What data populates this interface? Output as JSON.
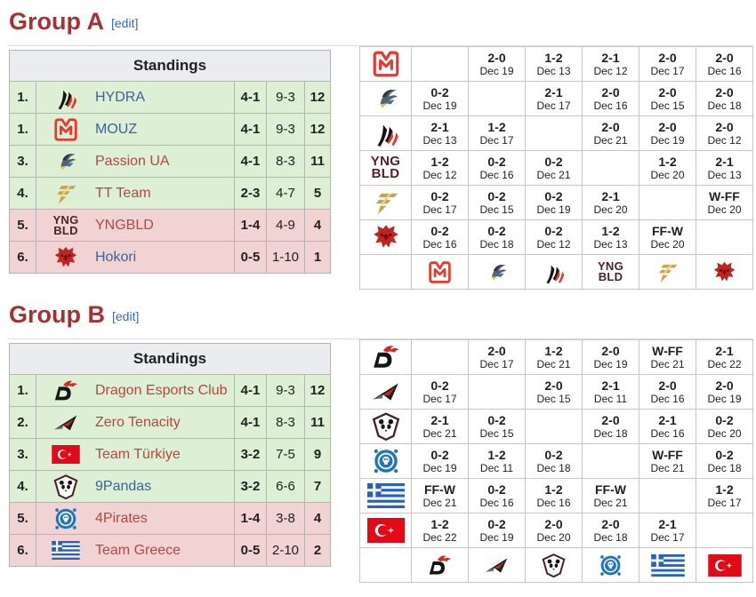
{
  "colors": {
    "heading": "#a53130",
    "edit_link": "#3a66c0",
    "link_blue": "#3a62a0",
    "link_red": "#b4473f",
    "standings_advance_bg": "#ddf0d5",
    "standings_eliminated_bg": "#f2d3d3",
    "win_bg": "#def2d8",
    "loss_bg": "#f4d6d6",
    "diagonal_bg": "#e3e3eb",
    "header_bg": "#eaecf0"
  },
  "icon_text": {
    "yngbld-logo": [
      "YNG",
      "BLD"
    ]
  },
  "groups": [
    {
      "title": "Group A",
      "edit_label": "[edit]",
      "standings": {
        "title": "Standings",
        "rows": [
          {
            "rank": "1.",
            "icon": "hydra-logo",
            "team": "HYDRA",
            "link": "blue",
            "match_record": "4-1",
            "game_record": "9-3",
            "points": "12",
            "zone": "advance"
          },
          {
            "rank": "1.",
            "icon": "mouz-logo",
            "team": "MOUZ",
            "link": "blue",
            "match_record": "4-1",
            "game_record": "9-3",
            "points": "12",
            "zone": "advance"
          },
          {
            "rank": "3.",
            "icon": "passion-ua-logo",
            "team": "Passion UA",
            "link": "red",
            "match_record": "4-1",
            "game_record": "8-3",
            "points": "11",
            "zone": "advance"
          },
          {
            "rank": "4.",
            "icon": "tt-team-logo",
            "team": "TT Team",
            "link": "red",
            "match_record": "2-3",
            "game_record": "4-7",
            "points": "5",
            "zone": "advance"
          },
          {
            "rank": "5.",
            "icon": "yngbld-logo",
            "team": "YNGBLD",
            "link": "red",
            "match_record": "1-4",
            "game_record": "4-9",
            "points": "4",
            "zone": "eliminated"
          },
          {
            "rank": "6.",
            "icon": "hokori-logo",
            "team": "Hokori",
            "link": "blue",
            "match_record": "0-5",
            "game_record": "1-10",
            "points": "1",
            "zone": "eliminated"
          }
        ]
      },
      "crosstable": {
        "columns": [
          {
            "team": "MOUZ",
            "icon": "mouz-logo"
          },
          {
            "team": "Passion UA",
            "icon": "passion-ua-logo"
          },
          {
            "team": "HYDRA",
            "icon": "hydra-logo"
          },
          {
            "team": "YNGBLD",
            "icon": "yngbld-logo"
          },
          {
            "team": "TT Team",
            "icon": "tt-team-logo"
          },
          {
            "team": "Hokori",
            "icon": "hokori-logo"
          }
        ],
        "rows": [
          {
            "team": "MOUZ",
            "icon": "mouz-logo",
            "results": [
              null,
              {
                "score": "2-0",
                "date": "Dec 19",
                "result": "win"
              },
              {
                "score": "1-2",
                "date": "Dec 13",
                "result": "loss"
              },
              {
                "score": "2-1",
                "date": "Dec 12",
                "result": "win"
              },
              {
                "score": "2-0",
                "date": "Dec 17",
                "result": "win"
              },
              {
                "score": "2-0",
                "date": "Dec 16",
                "result": "win"
              }
            ]
          },
          {
            "team": "Passion UA",
            "icon": "passion-ua-logo",
            "results": [
              {
                "score": "0-2",
                "date": "Dec 19",
                "result": "loss"
              },
              null,
              {
                "score": "2-1",
                "date": "Dec 17",
                "result": "win"
              },
              {
                "score": "2-0",
                "date": "Dec 16",
                "result": "win"
              },
              {
                "score": "2-0",
                "date": "Dec 15",
                "result": "win"
              },
              {
                "score": "2-0",
                "date": "Dec 18",
                "result": "win"
              }
            ]
          },
          {
            "team": "HYDRA",
            "icon": "hydra-logo",
            "results": [
              {
                "score": "2-1",
                "date": "Dec 13",
                "result": "win"
              },
              {
                "score": "1-2",
                "date": "Dec 17",
                "result": "loss"
              },
              null,
              {
                "score": "2-0",
                "date": "Dec 21",
                "result": "win"
              },
              {
                "score": "2-0",
                "date": "Dec 19",
                "result": "win"
              },
              {
                "score": "2-0",
                "date": "Dec 12",
                "result": "win"
              }
            ]
          },
          {
            "team": "YNGBLD",
            "icon": "yngbld-logo",
            "results": [
              {
                "score": "1-2",
                "date": "Dec 12",
                "result": "loss"
              },
              {
                "score": "0-2",
                "date": "Dec 16",
                "result": "loss"
              },
              {
                "score": "0-2",
                "date": "Dec 21",
                "result": "loss"
              },
              null,
              {
                "score": "1-2",
                "date": "Dec 20",
                "result": "loss"
              },
              {
                "score": "2-1",
                "date": "Dec 13",
                "result": "win"
              }
            ]
          },
          {
            "team": "TT Team",
            "icon": "tt-team-logo",
            "results": [
              {
                "score": "0-2",
                "date": "Dec 17",
                "result": "loss"
              },
              {
                "score": "0-2",
                "date": "Dec 15",
                "result": "loss"
              },
              {
                "score": "0-2",
                "date": "Dec 19",
                "result": "loss"
              },
              {
                "score": "2-1",
                "date": "Dec 20",
                "result": "win"
              },
              null,
              {
                "score": "W-FF",
                "date": "Dec 20",
                "result": "win"
              }
            ]
          },
          {
            "team": "Hokori",
            "icon": "hokori-logo",
            "results": [
              {
                "score": "0-2",
                "date": "Dec 16",
                "result": "loss"
              },
              {
                "score": "0-2",
                "date": "Dec 18",
                "result": "loss"
              },
              {
                "score": "0-2",
                "date": "Dec 12",
                "result": "loss"
              },
              {
                "score": "1-2",
                "date": "Dec 13",
                "result": "loss"
              },
              {
                "score": "FF-W",
                "date": "Dec 20",
                "result": "loss"
              },
              null
            ]
          }
        ]
      }
    },
    {
      "title": "Group B",
      "edit_label": "[edit]",
      "standings": {
        "title": "Standings",
        "rows": [
          {
            "rank": "1.",
            "icon": "dragon-esports-logo",
            "team": "Dragon Esports Club",
            "link": "red",
            "match_record": "4-1",
            "game_record": "9-3",
            "points": "12",
            "zone": "advance"
          },
          {
            "rank": "2.",
            "icon": "zero-tenacity-logo",
            "team": "Zero Tenacity",
            "link": "red",
            "match_record": "4-1",
            "game_record": "8-3",
            "points": "11",
            "zone": "advance"
          },
          {
            "rank": "3.",
            "icon": "turkiye-flag",
            "team": "Team Türkiye",
            "link": "red",
            "match_record": "3-2",
            "game_record": "7-5",
            "points": "9",
            "zone": "advance"
          },
          {
            "rank": "4.",
            "icon": "9pandas-logo",
            "team": "9Pandas",
            "link": "blue",
            "match_record": "3-2",
            "game_record": "6-6",
            "points": "7",
            "zone": "advance"
          },
          {
            "rank": "5.",
            "icon": "4pirates-logo",
            "team": "4Pirates",
            "link": "red",
            "match_record": "1-4",
            "game_record": "3-8",
            "points": "4",
            "zone": "eliminated"
          },
          {
            "rank": "6.",
            "icon": "greece-flag",
            "team": "Team Greece",
            "link": "red",
            "match_record": "0-5",
            "game_record": "2-10",
            "points": "2",
            "zone": "eliminated"
          }
        ]
      },
      "crosstable": {
        "columns": [
          {
            "team": "Dragon Esports Club",
            "icon": "dragon-esports-logo"
          },
          {
            "team": "Zero Tenacity",
            "icon": "zero-tenacity-logo"
          },
          {
            "team": "9Pandas",
            "icon": "9pandas-logo"
          },
          {
            "team": "4Pirates",
            "icon": "4pirates-logo"
          },
          {
            "team": "Team Greece",
            "icon": "greece-flag"
          },
          {
            "team": "Team Türkiye",
            "icon": "turkiye-flag"
          }
        ],
        "rows": [
          {
            "team": "Dragon Esports Club",
            "icon": "dragon-esports-logo",
            "results": [
              null,
              {
                "score": "2-0",
                "date": "Dec 17",
                "result": "win"
              },
              {
                "score": "1-2",
                "date": "Dec 21",
                "result": "loss"
              },
              {
                "score": "2-0",
                "date": "Dec 19",
                "result": "win"
              },
              {
                "score": "W-FF",
                "date": "Dec 21",
                "result": "win"
              },
              {
                "score": "2-1",
                "date": "Dec 22",
                "result": "win"
              }
            ]
          },
          {
            "team": "Zero Tenacity",
            "icon": "zero-tenacity-logo",
            "results": [
              {
                "score": "0-2",
                "date": "Dec 17",
                "result": "loss"
              },
              null,
              {
                "score": "2-0",
                "date": "Dec 15",
                "result": "win"
              },
              {
                "score": "2-1",
                "date": "Dec 11",
                "result": "win"
              },
              {
                "score": "2-0",
                "date": "Dec 16",
                "result": "win"
              },
              {
                "score": "2-0",
                "date": "Dec 19",
                "result": "win"
              }
            ]
          },
          {
            "team": "9Pandas",
            "icon": "9pandas-logo",
            "results": [
              {
                "score": "2-1",
                "date": "Dec 21",
                "result": "win"
              },
              {
                "score": "0-2",
                "date": "Dec 15",
                "result": "loss"
              },
              null,
              {
                "score": "2-0",
                "date": "Dec 18",
                "result": "win"
              },
              {
                "score": "2-1",
                "date": "Dec 16",
                "result": "win"
              },
              {
                "score": "0-2",
                "date": "Dec 20",
                "result": "loss"
              }
            ]
          },
          {
            "team": "4Pirates",
            "icon": "4pirates-logo",
            "results": [
              {
                "score": "0-2",
                "date": "Dec 19",
                "result": "loss"
              },
              {
                "score": "1-2",
                "date": "Dec 11",
                "result": "loss"
              },
              {
                "score": "0-2",
                "date": "Dec 18",
                "result": "loss"
              },
              null,
              {
                "score": "W-FF",
                "date": "Dec 21",
                "result": "win"
              },
              {
                "score": "0-2",
                "date": "Dec 18",
                "result": "loss"
              }
            ]
          },
          {
            "team": "Team Greece",
            "icon": "greece-flag",
            "results": [
              {
                "score": "FF-W",
                "date": "Dec 21",
                "result": "loss"
              },
              {
                "score": "0-2",
                "date": "Dec 16",
                "result": "loss"
              },
              {
                "score": "1-2",
                "date": "Dec 16",
                "result": "loss"
              },
              {
                "score": "FF-W",
                "date": "Dec 21",
                "result": "loss"
              },
              null,
              {
                "score": "1-2",
                "date": "Dec 17",
                "result": "loss"
              }
            ]
          },
          {
            "team": "Team Türkiye",
            "icon": "turkiye-flag",
            "results": [
              {
                "score": "1-2",
                "date": "Dec 22",
                "result": "loss"
              },
              {
                "score": "0-2",
                "date": "Dec 19",
                "result": "loss"
              },
              {
                "score": "2-0",
                "date": "Dec 20",
                "result": "win"
              },
              {
                "score": "2-0",
                "date": "Dec 18",
                "result": "win"
              },
              {
                "score": "2-1",
                "date": "Dec 17",
                "result": "win"
              },
              null
            ]
          }
        ]
      }
    }
  ]
}
